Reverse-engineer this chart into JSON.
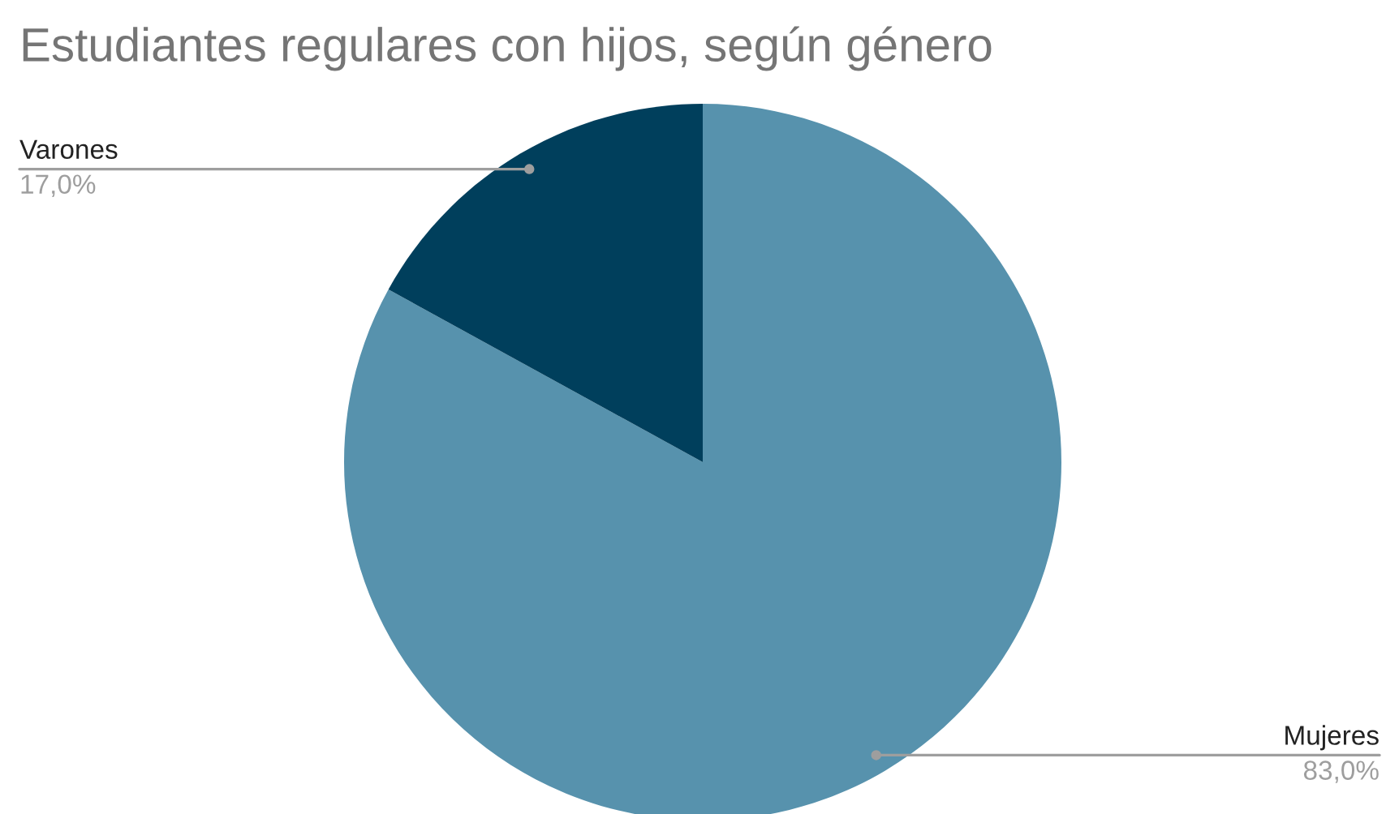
{
  "chart_data": {
    "type": "pie",
    "title": "Estudiantes regulares con hijos, según género",
    "categories": [
      "Mujeres",
      "Varones"
    ],
    "values": [
      83.0,
      17.0
    ],
    "value_labels": [
      "83,0%",
      "17,0%"
    ],
    "colors": [
      "#5792ad",
      "#003f5c"
    ],
    "legend": false
  }
}
